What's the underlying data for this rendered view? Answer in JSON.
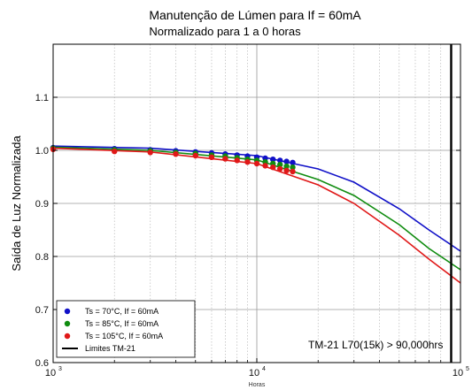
{
  "chart_data": {
    "type": "line",
    "title": "Manutenção de Lúmen para If = 60mA",
    "subtitle": "Normalizado para 1 a 0 horas",
    "xlabel": "Horas",
    "ylabel": "Saída de Luz Normalizada",
    "xscale": "log",
    "xlim": [
      1000,
      100000
    ],
    "ylim": [
      0.6,
      1.2
    ],
    "x_ticks": [
      1000,
      10000,
      100000
    ],
    "x_tick_labels": [
      "10",
      "10",
      "10"
    ],
    "x_tick_exponents": [
      "3",
      "4",
      "5"
    ],
    "y_ticks": [
      0.6,
      0.7,
      0.8,
      0.9,
      1.0,
      1.1
    ],
    "y_tick_labels": [
      "0.6",
      "0.7",
      "0.8",
      "0.9",
      "1.0",
      "1.1"
    ],
    "grid": true,
    "legend_position": "bottom-left",
    "series": [
      {
        "name": "Ts = 70°C, If = 60mA",
        "color": "#1010c8",
        "points": [
          [
            1000,
            1.005
          ],
          [
            2000,
            1.003
          ],
          [
            3000,
            1.001
          ],
          [
            4000,
            0.999
          ],
          [
            5000,
            0.997
          ],
          [
            6000,
            0.995
          ],
          [
            7000,
            0.993
          ],
          [
            8000,
            0.991
          ],
          [
            9000,
            0.989
          ],
          [
            10000,
            0.987
          ],
          [
            11000,
            0.985
          ],
          [
            12000,
            0.983
          ],
          [
            13000,
            0.981
          ],
          [
            14000,
            0.979
          ],
          [
            15000,
            0.977
          ]
        ],
        "fit": [
          [
            1000,
            1.008
          ],
          [
            3000,
            1.004
          ],
          [
            10000,
            0.99
          ],
          [
            20000,
            0.965
          ],
          [
            30000,
            0.94
          ],
          [
            50000,
            0.89
          ],
          [
            70000,
            0.85
          ],
          [
            100000,
            0.81
          ]
        ]
      },
      {
        "name": "Ts = 85°C, If = 60mA",
        "color": "#108c10",
        "points": [
          [
            1000,
            1.004
          ],
          [
            2000,
            1.001
          ],
          [
            3000,
            0.999
          ],
          [
            4000,
            0.996
          ],
          [
            5000,
            0.994
          ],
          [
            6000,
            0.991
          ],
          [
            7000,
            0.989
          ],
          [
            8000,
            0.986
          ],
          [
            9000,
            0.983
          ],
          [
            10000,
            0.981
          ],
          [
            11000,
            0.978
          ],
          [
            12000,
            0.975
          ],
          [
            13000,
            0.973
          ],
          [
            14000,
            0.97
          ],
          [
            15000,
            0.968
          ]
        ],
        "fit": [
          [
            1000,
            1.006
          ],
          [
            3000,
            1.0
          ],
          [
            10000,
            0.982
          ],
          [
            20000,
            0.945
          ],
          [
            30000,
            0.915
          ],
          [
            50000,
            0.86
          ],
          [
            70000,
            0.815
          ],
          [
            100000,
            0.775
          ]
        ]
      },
      {
        "name": "Ts = 105°C, If = 60mA",
        "color": "#e01818",
        "points": [
          [
            1000,
            1.002
          ],
          [
            2000,
            0.998
          ],
          [
            3000,
            0.996
          ],
          [
            4000,
            0.993
          ],
          [
            5000,
            0.99
          ],
          [
            6000,
            0.987
          ],
          [
            7000,
            0.984
          ],
          [
            8000,
            0.981
          ],
          [
            9000,
            0.978
          ],
          [
            10000,
            0.975
          ],
          [
            11000,
            0.971
          ],
          [
            12000,
            0.968
          ],
          [
            13000,
            0.965
          ],
          [
            14000,
            0.962
          ],
          [
            15000,
            0.96
          ]
        ],
        "fit": [
          [
            1000,
            1.004
          ],
          [
            3000,
            0.997
          ],
          [
            10000,
            0.975
          ],
          [
            20000,
            0.935
          ],
          [
            30000,
            0.9
          ],
          [
            50000,
            0.84
          ],
          [
            70000,
            0.795
          ],
          [
            100000,
            0.75
          ]
        ]
      }
    ],
    "limit_line": {
      "name": "Limites TM-21",
      "x": 90000,
      "color": "#000000"
    },
    "annotation": "TM-21 L70(15k) > 90,000hrs"
  }
}
